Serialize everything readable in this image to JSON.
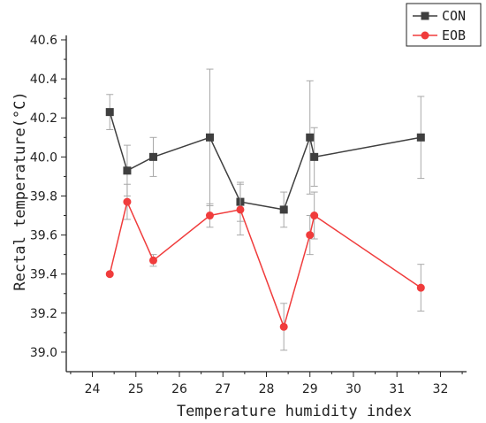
{
  "chart_data": {
    "type": "line",
    "xlabel": "Temperature humidity index",
    "ylabel": "Rectal temperature(°C)",
    "xlim": [
      23.4,
      32.6
    ],
    "ylim": [
      38.9,
      40.6
    ],
    "x_ticks": [
      "24",
      "25",
      "26",
      "27",
      "28",
      "29",
      "30",
      "31",
      "32"
    ],
    "y_ticks": [
      "39.0",
      "39.2",
      "39.4",
      "39.6",
      "39.8",
      "40.0",
      "40.2",
      "40.4",
      "40.6"
    ],
    "legend_position": "top-right",
    "grid": false,
    "series": [
      {
        "name": "CON",
        "color": "#3f3f3f",
        "marker": "square",
        "x": [
          24.4,
          24.8,
          25.4,
          26.7,
          27.4,
          28.4,
          29.0,
          29.1,
          31.55
        ],
        "y": [
          40.23,
          39.93,
          40.0,
          40.1,
          39.77,
          39.73,
          40.1,
          40.0,
          40.1
        ],
        "err": [
          0.09,
          0.13,
          0.1,
          0.35,
          0.1,
          0.09,
          0.29,
          0.15,
          0.21
        ]
      },
      {
        "name": "EOB",
        "color": "#f03c3c",
        "marker": "circle",
        "x": [
          24.4,
          24.8,
          25.4,
          26.7,
          27.4,
          28.4,
          29.0,
          29.1,
          31.55
        ],
        "y": [
          39.4,
          39.77,
          39.47,
          39.7,
          39.73,
          39.13,
          39.6,
          39.7,
          39.33
        ],
        "err": [
          0.0,
          0.09,
          0.03,
          0.06,
          0.13,
          0.12,
          0.1,
          0.12,
          0.12
        ]
      }
    ]
  }
}
